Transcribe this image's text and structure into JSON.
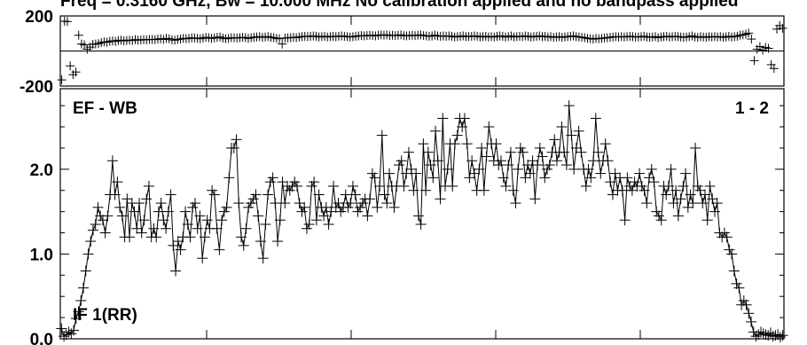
{
  "chart_data": [
    {
      "type": "scatter",
      "panel": "phase",
      "title": "Freq = 0.3160 GHz, Bw = 10.000 MHz   No calibration applied and no bandpass applied",
      "ylim": [
        -200,
        200
      ],
      "y_ticks": [
        200,
        -200
      ],
      "y_tick_labels": [
        "200",
        "-200"
      ],
      "xlim": [
        0,
        256
      ],
      "grid": false,
      "series": [
        {
          "values": [
            -165,
            170,
            168,
            -85,
            -135,
            -120,
            90,
            40,
            35,
            10,
            22,
            38,
            40,
            42,
            48,
            52,
            50,
            55,
            58,
            55,
            60,
            62,
            58,
            60,
            62,
            60,
            65,
            62,
            63,
            65,
            64,
            66,
            66,
            65,
            68,
            70,
            66,
            72,
            70,
            64,
            62,
            66,
            68,
            72,
            70,
            72,
            75,
            74,
            72,
            70,
            74,
            78,
            76,
            72,
            75,
            78,
            80,
            74,
            70,
            72,
            76,
            75,
            74,
            76,
            78,
            76,
            72,
            76,
            78,
            80,
            82,
            78,
            80,
            82,
            78,
            76,
            72,
            70,
            40,
            74,
            75,
            76,
            78,
            76,
            80,
            82,
            84,
            82,
            84,
            86,
            84,
            80,
            82,
            84,
            80,
            82,
            84,
            82,
            84,
            86,
            84,
            82,
            80,
            82,
            84,
            86,
            88,
            86,
            88,
            90,
            88,
            86,
            90,
            92,
            90,
            92,
            88,
            90,
            88,
            90,
            92,
            88,
            86,
            88,
            90,
            88,
            90,
            92,
            88,
            86,
            84,
            86,
            90,
            86,
            84,
            86,
            84,
            86,
            84,
            80,
            82,
            84,
            86,
            82,
            82,
            84,
            86,
            84,
            80,
            82,
            84,
            80,
            82,
            80,
            84,
            86,
            84,
            80,
            82,
            86,
            80,
            82,
            84,
            82,
            86,
            84,
            80,
            82,
            84,
            86,
            82,
            84,
            80,
            82,
            78,
            80,
            82,
            78,
            80,
            82,
            84,
            86,
            82,
            80,
            78,
            76,
            72,
            70,
            68,
            72,
            70,
            72,
            74,
            76,
            78,
            80,
            82,
            80,
            82,
            80,
            82,
            84,
            82,
            80,
            80,
            82,
            84,
            80,
            78,
            80,
            82,
            76,
            80,
            82,
            84,
            80,
            82,
            84,
            82,
            80,
            78,
            80,
            82,
            86,
            80,
            78,
            82,
            80,
            78,
            82,
            80,
            82,
            80,
            82,
            78,
            80,
            84,
            80,
            82,
            84,
            90,
            92,
            96,
            102,
            68,
            -55,
            10,
            25,
            5,
            20,
            15,
            -78,
            -100,
            125,
            145,
            130
          ]
        }
      ]
    },
    {
      "type": "line",
      "panel": "amplitude",
      "ylim": [
        0,
        2.95
      ],
      "y_ticks": [
        0.0,
        1.0,
        2.0
      ],
      "y_tick_labels": [
        "0.0",
        "1.0",
        "2.0"
      ],
      "xlim": [
        0,
        256
      ],
      "grid": false,
      "series": [
        {
          "values": [
            0.12,
            0.03,
            0.05,
            0.08,
            0.06,
            0.1,
            0.24,
            0.32,
            0.45,
            0.6,
            0.8,
            1.0,
            1.15,
            1.28,
            1.35,
            1.55,
            1.45,
            1.4,
            1.25,
            1.45,
            1.7,
            2.1,
            1.7,
            1.85,
            1.55,
            1.45,
            1.2,
            1.65,
            1.2,
            1.6,
            1.5,
            1.3,
            1.6,
            1.25,
            1.4,
            1.65,
            1.8,
            1.2,
            1.3,
            1.2,
            1.5,
            1.6,
            1.4,
            1.3,
            1.5,
            1.7,
            1.1,
            0.8,
            1.15,
            1.05,
            1.2,
            1.5,
            1.35,
            1.2,
            1.55,
            1.6,
            1.3,
            1.45,
            0.95,
            1.2,
            1.4,
            1.3,
            1.75,
            1.7,
            1.3,
            1.05,
            1.4,
            1.5,
            1.55,
            1.9,
            2.25,
            2.25,
            2.35,
            1.6,
            1.2,
            1.1,
            1.3,
            1.55,
            1.6,
            1.65,
            1.7,
            1.45,
            1.15,
            0.95,
            1.35,
            1.7,
            1.85,
            1.9,
            1.6,
            1.15,
            1.4,
            1.85,
            1.6,
            1.8,
            1.75,
            1.8,
            1.85,
            1.8,
            1.6,
            1.5,
            1.55,
            1.3,
            1.35,
            1.8,
            1.85,
            1.4,
            1.7,
            1.55,
            1.45,
            1.55,
            1.35,
            1.5,
            1.8,
            1.55,
            1.6,
            1.5,
            1.55,
            1.7,
            1.55,
            1.6,
            1.8,
            1.7,
            1.5,
            1.55,
            1.6,
            1.65,
            1.45,
            1.65,
            1.95,
            1.9,
            1.55,
            1.8,
            2.4,
            1.7,
            1.6,
            1.95,
            1.8,
            1.55,
            1.8,
            2.05,
            2.1,
            1.8,
            1.95,
            2.2,
            2.0,
            1.75,
            1.95,
            1.45,
            1.35,
            2.3,
            1.75,
            2.2,
            2.05,
            1.9,
            2.45,
            2.1,
            1.65,
            2.6,
            1.8,
            2.0,
            2.3,
            1.8,
            2.3,
            2.4,
            2.6,
            2.5,
            2.6,
            2.3,
            1.9,
            2.1,
            1.95,
            1.75,
            2.0,
            2.25,
            1.75,
            2.15,
            2.5,
            2.3,
            2.1,
            2.3,
            2.05,
            2.1,
            1.9,
            1.8,
            2.05,
            2.2,
            1.75,
            1.6,
            2.0,
            2.25,
            2.2,
            1.9,
            2.05,
            1.95,
            2.1,
            1.65,
            2.05,
            2.25,
            2.15,
            1.9,
            2.0,
            2.05,
            2.2,
            2.35,
            2.1,
            2.2,
            2.5,
            2.2,
            2.05,
            2.75,
            2.4,
            2.0,
            2.25,
            2.45,
            2.2,
            2.0,
            1.8,
            2.0,
            1.9,
            2.1,
            2.6,
            2.2,
            1.95,
            2.1,
            2.3,
            2.1,
            1.85,
            1.7,
            1.95,
            1.75,
            1.9,
            1.75,
            1.4,
            1.9,
            1.8,
            1.75,
            1.85,
            1.8,
            1.95,
            1.8,
            1.75,
            1.6,
            1.9,
            2.0,
            1.85,
            1.5,
            1.45,
            1.4,
            1.8,
            1.7,
            1.8,
            2.0,
            1.6,
            1.75,
            1.45,
            1.65,
            1.8,
            1.95,
            1.55,
            1.7,
            1.6,
            2.25,
            1.8,
            1.75,
            1.6,
            1.7,
            1.4,
            1.8,
            1.65,
            1.5,
            1.6,
            1.25,
            1.2,
            1.25,
            1.2,
            1.05,
            1.0,
            0.8,
            0.65,
            0.6,
            0.4,
            0.45,
            0.4,
            0.3,
            0.2,
            0.08,
            0.03,
            0.05,
            0.08,
            0.06,
            0.05,
            0.04,
            0.07,
            0.03,
            0.04,
            0.05,
            0.02,
            0.04
          ]
        }
      ],
      "annotations": {
        "top_left": "EF - WB",
        "top_right": "1 - 2",
        "bottom_left": "IF 1(RR)"
      }
    }
  ],
  "colors": {
    "ink": "#000000",
    "background": "#ffffff"
  }
}
